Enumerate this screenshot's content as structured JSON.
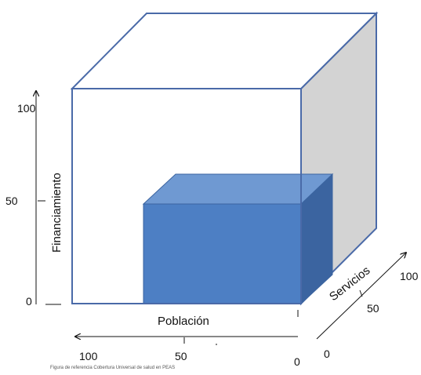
{
  "diagram": {
    "axis_labels": {
      "vertical": "Financiamiento",
      "horizontal": "Población",
      "depth": "Servicios"
    },
    "vertical_ticks": [
      "100",
      "50",
      "0"
    ],
    "horizontal_ticks": [
      "100",
      "50",
      "0"
    ],
    "depth_ticks": [
      "100",
      "50",
      "0"
    ],
    "caption": "Figura de referencia Cobertura Universal de salud en PEAS",
    "colors": {
      "cube_edge": "#4a6aa8",
      "cube_side_face": "#d3d3d3",
      "block_front": "#4d7fc4",
      "block_top": "#6f99d2",
      "block_side": "#3b64a0",
      "axis": "#111111"
    }
  }
}
